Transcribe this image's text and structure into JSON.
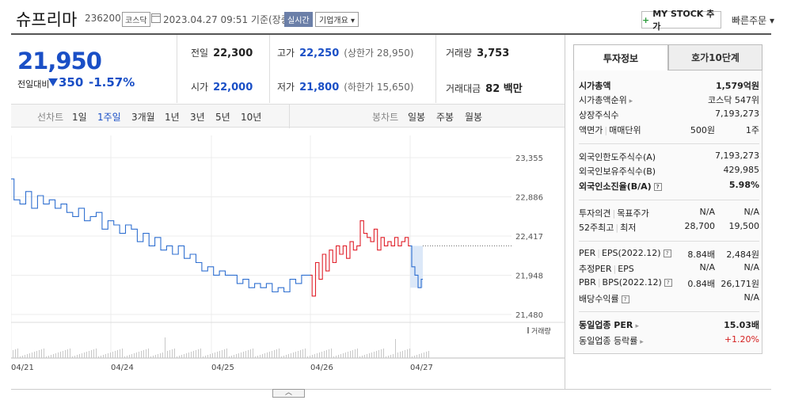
{
  "header": {
    "name": "슈프리마",
    "code": "236200",
    "market": "코스닥",
    "datetime": "2023.04.27 09:51 기준(장중)",
    "live": "실시간",
    "company_overview": "기업개요 ▾",
    "mystock": "MY STOCK 추가",
    "quick_order": "빠른주문 ▾"
  },
  "price": {
    "current": "21,950",
    "change_label": "전일대비",
    "change": "350",
    "change_pct": "-1.57%"
  },
  "stats": {
    "prev_label": "전일",
    "prev": "22,300",
    "high_label": "고가",
    "high": "22,250",
    "upper": "(상한가 28,950)",
    "volume_label": "거래량",
    "volume": "3,753",
    "open_label": "시가",
    "open": "22,000",
    "low_label": "저가",
    "low": "21,800",
    "lower": "(하한가 15,650)",
    "amount_label": "거래대금",
    "amount": "82 백만"
  },
  "controls": {
    "line_chart": "선차트",
    "periods": [
      "1일",
      "1주일",
      "3개월",
      "1년",
      "3년",
      "5년",
      "10년"
    ],
    "active_period": "1주일",
    "candle_chart": "봉차트",
    "candles": [
      "일봉",
      "주봉",
      "월봉"
    ]
  },
  "chart_data": {
    "type": "line",
    "y_ticks": [
      "23,355",
      "22,886",
      "22,417",
      "21,948",
      "21,480"
    ],
    "ylim": [
      21480,
      23355
    ],
    "x_ticks": [
      "04/21",
      "04/24",
      "04/25",
      "04/26",
      "04/27"
    ],
    "volume_label": "거래량",
    "colors": {
      "down": "#2f6fd0",
      "up": "#e0202a",
      "highlight": "#dce8f8"
    },
    "series": [
      {
        "values": [
          23100,
          22850,
          22800,
          22950,
          22750,
          22900,
          22800,
          22850,
          22750,
          22800,
          22700,
          22650,
          22750,
          22600,
          22650,
          22700,
          22500,
          22600,
          22550,
          22450,
          22550,
          22500,
          22350,
          22450,
          22300,
          22400,
          22250,
          22300,
          22200,
          22300,
          22150,
          22200,
          22100,
          22000,
          22050,
          21950,
          22000,
          21950,
          21950,
          21850,
          21900,
          21800,
          21850,
          21800,
          21850,
          21750,
          21800,
          21750,
          21900,
          21850,
          21950,
          21950
        ]
      },
      {
        "values": [
          21950,
          21700,
          22100,
          21900,
          22200,
          22000,
          22250,
          22100,
          22300,
          22200,
          22300,
          22150,
          22350,
          22250,
          22300,
          22600,
          22450,
          22400,
          22350,
          22500,
          22250,
          22400,
          22300,
          22350,
          22300,
          22400,
          22300,
          22350,
          22400,
          22300
        ]
      },
      {
        "values": [
          22300,
          22050,
          21950,
          21800,
          21900
        ]
      }
    ]
  },
  "side": {
    "tab_info": "투자정보",
    "tab_quote": "호가10단계",
    "rows": [
      {
        "k": "시가총액",
        "v": "1,579억원"
      },
      {
        "k": "시가총액순위",
        "v": "코스닥 547위"
      },
      {
        "k": "상장주식수",
        "v": "7,193,273"
      },
      {
        "k": "액면가",
        "k2": "매매단위",
        "v": "500원",
        "v3": "1주"
      },
      {
        "k": "외국인한도주식수(A)",
        "v": "7,193,273"
      },
      {
        "k": "외국인보유주식수(B)",
        "v": "429,985"
      },
      {
        "k": "외국인소진율(B/A)",
        "v": "5.98%"
      },
      {
        "k": "투자의견",
        "k2": "목표주가",
        "v": "N/A",
        "v3": "N/A"
      },
      {
        "k": "52주최고",
        "k2": "최저",
        "v": "28,700",
        "v3": "19,500"
      },
      {
        "k": "PER",
        "k2": "EPS(2022.12)",
        "v": "8.84배",
        "v3": "2,484원"
      },
      {
        "k": "추정PER",
        "k2": "EPS",
        "v": "N/A",
        "v3": "N/A"
      },
      {
        "k": "PBR",
        "k2": "BPS(2022.12)",
        "v": "0.84배",
        "v3": "26,171원"
      },
      {
        "k": "배당수익률",
        "v": "N/A"
      },
      {
        "k": "동일업종 PER",
        "v": "15.03배"
      },
      {
        "k": "동일업종 등락률",
        "v": "+1.20%"
      }
    ]
  }
}
